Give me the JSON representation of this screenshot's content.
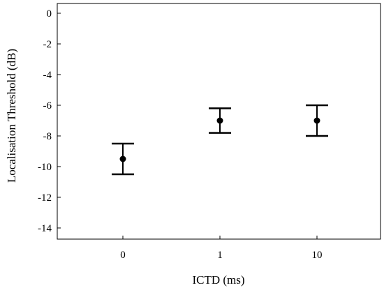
{
  "chart_data": {
    "type": "scatter",
    "error_bars": true,
    "title": "",
    "xlabel": "ICTD (ms)",
    "ylabel": "Localisation Threshold (dB)",
    "categories": [
      "0",
      "1",
      "10"
    ],
    "values": [
      -9.5,
      -7.0,
      -7.0
    ],
    "error_low": [
      -10.5,
      -7.8,
      -8.0
    ],
    "error_high": [
      -8.5,
      -6.2,
      -6.0
    ],
    "ylim": [
      -15,
      0.3
    ],
    "y_ticks": [
      0,
      -2,
      -4,
      -6,
      -8,
      -10,
      -12,
      -14
    ],
    "y_tick_labels": [
      "0",
      "-2",
      "-4",
      "-6",
      "-8",
      "-10",
      "-12",
      "-14"
    ],
    "grid": false,
    "legend": "none",
    "colors": {
      "marker": "#000000",
      "axis": "#000000",
      "background": "#ffffff"
    }
  }
}
